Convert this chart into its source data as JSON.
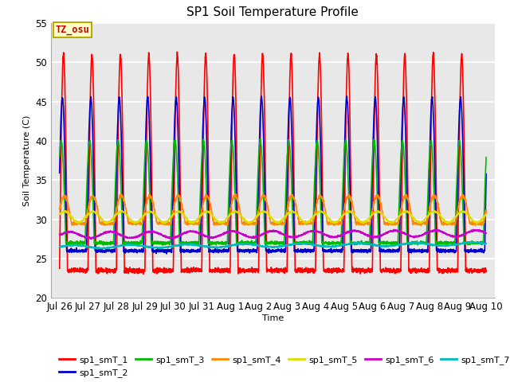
{
  "title": "SP1 Soil Temperature Profile",
  "xlabel": "Time",
  "ylabel": "Soil Temperature (C)",
  "ylim": [
    20,
    55
  ],
  "background_color": "#e8e8e8",
  "grid_color": "white",
  "tz_label": "TZ_osu",
  "tz_box_facecolor": "#ffffcc",
  "tz_box_edgecolor": "#bbaa00",
  "tz_text_color": "#cc0000",
  "series_colors": {
    "sp1_smT_1": "#ff0000",
    "sp1_smT_2": "#0000cc",
    "sp1_smT_3": "#00bb00",
    "sp1_smT_4": "#ff8800",
    "sp1_smT_5": "#dddd00",
    "sp1_smT_6": "#cc00cc",
    "sp1_smT_7": "#00bbbb"
  },
  "tick_labels": [
    "Jul 26",
    "Jul 27",
    "Jul 28",
    "Jul 29",
    "Jul 30",
    "Jul 31",
    "Aug 1",
    "Aug 2",
    "Aug 3",
    "Aug 4",
    "Aug 5",
    "Aug 6",
    "Aug 7",
    "Aug 8",
    "Aug 9",
    "Aug 10"
  ],
  "tick_positions": [
    0,
    1,
    2,
    3,
    4,
    5,
    6,
    7,
    8,
    9,
    10,
    11,
    12,
    13,
    14,
    15
  ],
  "n_points": 3000
}
